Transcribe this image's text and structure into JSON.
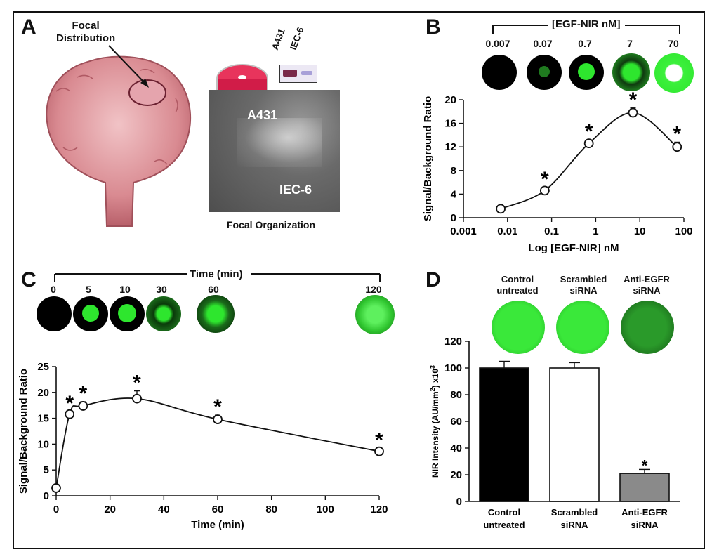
{
  "colors": {
    "black": "#000000",
    "green": "#2ee62e",
    "bar_gray": "#8a8a8a",
    "tissue": "#c9727a"
  },
  "panel_a": {
    "letter": "A",
    "focal_label_1": "Focal",
    "focal_label_2": "Distribution",
    "blot_labels": [
      "A431",
      "IEC-6"
    ],
    "micro_label_top": "A431",
    "micro_label_bottom": "IEC-6",
    "caption": "Focal Organization"
  },
  "panel_b": {
    "letter": "B",
    "bracket_label": "[EGF-NIR nM]",
    "well_labels": [
      "0.007",
      "0.07",
      "0.7",
      "7",
      "70"
    ]
  },
  "panel_c": {
    "letter": "C",
    "bracket_label": "Time (min)",
    "well_labels": [
      "0",
      "5",
      "10",
      "30",
      "60",
      "120"
    ]
  },
  "panel_d": {
    "letter": "D",
    "well_labels": [
      {
        "l1": "Control",
        "l2": "untreated"
      },
      {
        "l1": "Scrambled",
        "l2": "siRNA"
      },
      {
        "l1": "Anti-EGFR",
        "l2": "siRNA"
      }
    ]
  },
  "chart_data": [
    {
      "id": "B",
      "type": "line",
      "xscale": "log",
      "xlabel": "Log [EGF-NIR] nM",
      "ylabel": "Signal/Background Ratio",
      "xlim": [
        0.001,
        100
      ],
      "ylim": [
        0,
        20
      ],
      "xticks": [
        "0.001",
        "0.01",
        "0.1",
        "1",
        "10",
        "100"
      ],
      "yticks": [
        "0",
        "4",
        "8",
        "12",
        "16",
        "20"
      ],
      "x": [
        0.007,
        0.07,
        0.7,
        7,
        70
      ],
      "y": [
        1.5,
        4.6,
        12.6,
        17.8,
        12.0
      ],
      "err": [
        0.3,
        0.5,
        0.6,
        0.8,
        0.8
      ],
      "significant": [
        false,
        true,
        true,
        true,
        true
      ],
      "sig_marker": "*"
    },
    {
      "id": "C",
      "type": "line",
      "xlabel": "Time (min)",
      "ylabel": "Signal/Background Ratio",
      "xlim": [
        0,
        120
      ],
      "ylim": [
        0,
        25
      ],
      "xticks": [
        "0",
        "20",
        "40",
        "60",
        "80",
        "100",
        "120"
      ],
      "yticks": [
        "0",
        "5",
        "10",
        "15",
        "20",
        "25"
      ],
      "x": [
        0,
        5,
        10,
        30,
        60,
        120
      ],
      "y": [
        1.5,
        15.8,
        17.4,
        18.8,
        14.8,
        8.6
      ],
      "err": [
        0.3,
        0.5,
        0.8,
        1.5,
        0.8,
        0.6
      ],
      "significant": [
        false,
        true,
        true,
        true,
        true,
        true
      ],
      "sig_marker": "*"
    },
    {
      "id": "D",
      "type": "bar",
      "ylabel": "NIR Intensity (AU/mm",
      "ylabel_sup1": "2",
      "ylabel_mid": ") x10",
      "ylabel_sup2": "3",
      "ylim": [
        0,
        120
      ],
      "yticks": [
        "0",
        "20",
        "40",
        "60",
        "80",
        "100",
        "120"
      ],
      "categories": [
        {
          "l1": "Control",
          "l2": "untreated"
        },
        {
          "l1": "Scrambled",
          "l2": "siRNA"
        },
        {
          "l1": "Anti-EGFR",
          "l2": "siRNA"
        }
      ],
      "values": [
        100,
        100,
        21
      ],
      "err": [
        5,
        4,
        3
      ],
      "fills": [
        "#000000",
        "#ffffff",
        "#8a8a8a"
      ],
      "significant": [
        false,
        false,
        true
      ],
      "sig_marker": "*"
    }
  ]
}
